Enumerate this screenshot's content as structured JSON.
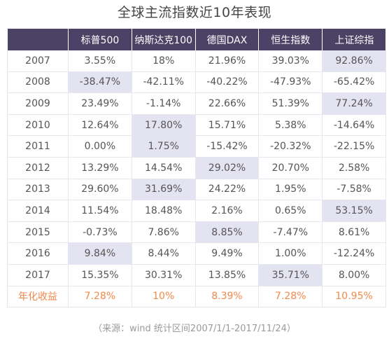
{
  "title": "全球主流指数近10年表现",
  "columns": [
    "",
    "标普500",
    "纳斯达克100",
    "德国DAX",
    "恒生指数",
    "上证综指"
  ],
  "rows": [
    {
      "label": "2007",
      "values": [
        "3.55%",
        "18%",
        "21.96%",
        "39.03%",
        "92.86%"
      ],
      "highlight": 4
    },
    {
      "label": "2008",
      "values": [
        "-38.47%",
        "-42.11%",
        "-40.22%",
        "-47.93%",
        "-65.42%"
      ],
      "highlight": 0
    },
    {
      "label": "2009",
      "values": [
        "23.49%",
        "-1.14%",
        "22.66%",
        "51.39%",
        "77.24%"
      ],
      "highlight": 4
    },
    {
      "label": "2010",
      "values": [
        "12.64%",
        "17.80%",
        "15.71%",
        "5.38%",
        "-14.64%"
      ],
      "highlight": 1
    },
    {
      "label": "2011",
      "values": [
        "0.00%",
        "1.75%",
        "-15.42%",
        "-20.32%",
        "-22.15%"
      ],
      "highlight": 1
    },
    {
      "label": "2012",
      "values": [
        "13.29%",
        "14.54%",
        "29.02%",
        "20.70%",
        "2.58%"
      ],
      "highlight": 2
    },
    {
      "label": "2013",
      "values": [
        "29.60%",
        "31.69%",
        "24.22%",
        "1.95%",
        "-7.58%"
      ],
      "highlight": 1
    },
    {
      "label": "2014",
      "values": [
        "11.54%",
        "18.48%",
        "2.16%",
        "0.65%",
        "53.15%"
      ],
      "highlight": 4
    },
    {
      "label": "2015",
      "values": [
        "-0.73%",
        "7.86%",
        "8.85%",
        "-7.47%",
        "8.61%"
      ],
      "highlight": 2
    },
    {
      "label": "2016",
      "values": [
        "9.84%",
        "8.44%",
        "9.49%",
        "1.00%",
        "-12.24%"
      ],
      "highlight": 0
    },
    {
      "label": "2017",
      "values": [
        "15.35%",
        "30.31%",
        "13.85%",
        "35.71%",
        "8.00%"
      ],
      "highlight": 3
    }
  ],
  "summary_row": {
    "label": "年化收益",
    "values": [
      "7.28%",
      "10%",
      "8.39%",
      "7.28%",
      "10.95%"
    ]
  },
  "source": "（来源：wind 统计区间2007/1/1-2017/11/24）",
  "colors": {
    "header_bg": "#4b4266",
    "highlight_bg": "#e4e3f2",
    "summary_text": "#f08a4b"
  }
}
